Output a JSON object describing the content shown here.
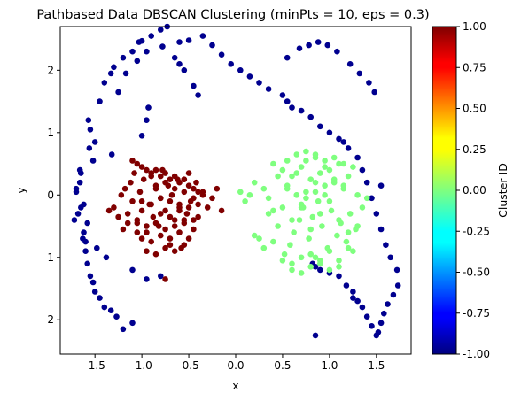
{
  "chart_data": {
    "type": "scatter",
    "title": "Pathbased Data DBSCAN Clustering (minPts = 10, eps = 0.3)",
    "xlabel": "x",
    "ylabel": "y",
    "xlim": [
      -1.87,
      1.87
    ],
    "ylim": [
      -2.55,
      2.7
    ],
    "xticks": [
      "-1.5",
      "-1.0",
      "-0.5",
      "0.0",
      "0.5",
      "1.0",
      "1.5"
    ],
    "yticks": [
      "-2",
      "-1",
      "0",
      "1",
      "2"
    ],
    "grid": false,
    "colorbar": {
      "label": "Cluster ID",
      "range": [
        -1.0,
        1.0
      ],
      "ticks": [
        "-1.00",
        "-0.75",
        "-0.50",
        "-0.25",
        "0.00",
        "0.25",
        "0.50",
        "0.75",
        "1.00"
      ],
      "colormap": "jet"
    },
    "colors": {
      "noise": "#00008f",
      "cluster_0": "#7fff7f",
      "cluster_1": "#800000"
    },
    "series": [
      {
        "cluster_id": -1,
        "x": [
          -1.72,
          -1.7,
          -1.66,
          -1.65,
          -1.62,
          -1.6,
          -1.68,
          -1.66,
          -1.65,
          -1.63,
          -1.6,
          -1.58,
          -1.55,
          -1.52,
          -1.5,
          -1.45,
          -1.4,
          -1.33,
          -1.27,
          -1.2,
          -1.1,
          -1.0,
          -0.95,
          -0.93,
          -1.56,
          -1.52,
          -1.45,
          -1.4,
          -1.33,
          -1.3,
          -1.2,
          -1.1,
          -1.03,
          -1.0,
          -0.9,
          -0.8,
          -0.73,
          -0.6,
          -0.5,
          -0.35,
          -0.25,
          -0.15,
          -0.05,
          0.05,
          0.15,
          0.25,
          0.35,
          0.5,
          0.55,
          0.6,
          0.7,
          0.8,
          0.9,
          1.0,
          1.1,
          1.15,
          1.2,
          1.3,
          1.35,
          1.4,
          1.45,
          1.5,
          1.55,
          1.6,
          1.65,
          1.72,
          1.73,
          1.68,
          1.62,
          1.58,
          1.55,
          1.52,
          1.5,
          1.45,
          1.4,
          1.35,
          1.3,
          1.25,
          1.18,
          1.1,
          1.0,
          0.9,
          0.85,
          0.82,
          -1.57,
          -1.55,
          -1.5,
          -1.32,
          -1.25,
          -1.17,
          -1.05,
          -0.95,
          -0.78,
          -0.65,
          -0.6,
          -0.55,
          -0.45,
          -0.4,
          -1.7,
          -1.62,
          -1.58,
          -1.48,
          -1.38,
          0.55,
          0.68,
          0.78,
          0.88,
          0.98,
          1.08,
          1.22,
          1.32,
          1.42,
          1.48,
          -0.95,
          -1.1,
          -0.8,
          0.85,
          1.25,
          1.55
        ],
        "y": [
          -0.4,
          0.1,
          0.4,
          -0.2,
          -0.6,
          -0.75,
          -0.3,
          0.2,
          0.35,
          -0.7,
          -0.9,
          -1.1,
          -1.3,
          -1.4,
          -1.55,
          -1.65,
          -1.8,
          -1.85,
          -1.95,
          -2.15,
          -2.05,
          0.95,
          1.2,
          1.4,
          0.75,
          0.55,
          1.5,
          1.8,
          1.95,
          2.05,
          2.2,
          2.3,
          2.45,
          2.47,
          2.55,
          2.65,
          2.7,
          2.45,
          2.48,
          2.55,
          2.4,
          2.25,
          2.1,
          2.0,
          1.9,
          1.8,
          1.7,
          1.6,
          1.5,
          1.4,
          1.35,
          1.25,
          1.1,
          1.0,
          0.9,
          0.85,
          0.75,
          0.6,
          0.4,
          0.2,
          -0.05,
          -0.3,
          -0.55,
          -0.8,
          -1.0,
          -1.2,
          -1.45,
          -1.6,
          -1.75,
          -1.9,
          -2.05,
          -2.2,
          -2.25,
          -2.1,
          -1.95,
          -1.8,
          -1.7,
          -1.55,
          -1.45,
          -1.3,
          -1.25,
          -1.2,
          -1.15,
          -1.1,
          1.2,
          1.05,
          0.85,
          0.65,
          1.65,
          1.95,
          2.15,
          2.3,
          2.38,
          2.2,
          2.1,
          2.0,
          1.75,
          1.6,
          0.05,
          -0.15,
          -0.45,
          -0.85,
          -1.0,
          2.2,
          2.35,
          2.4,
          2.45,
          2.4,
          2.3,
          2.1,
          1.95,
          1.8,
          1.65,
          -1.35,
          -1.2,
          -1.3,
          -2.25,
          -1.65,
          0.15
        ],
        "color": "#00008f"
      },
      {
        "cluster_id": 0,
        "x": [
          0.05,
          0.1,
          0.2,
          0.25,
          0.3,
          0.35,
          0.4,
          0.45,
          0.5,
          0.52,
          0.55,
          0.58,
          0.6,
          0.62,
          0.65,
          0.68,
          0.7,
          0.72,
          0.75,
          0.78,
          0.8,
          0.82,
          0.85,
          0.88,
          0.9,
          0.92,
          0.95,
          0.98,
          1.0,
          1.02,
          1.05,
          1.08,
          1.1,
          1.12,
          1.15,
          1.18,
          1.2,
          1.22,
          1.25,
          1.28,
          1.3,
          1.35,
          1.4,
          0.45,
          0.5,
          0.55,
          0.6,
          0.65,
          0.7,
          0.75,
          0.8,
          0.85,
          0.9,
          0.95,
          1.0,
          1.05,
          1.1,
          1.15,
          1.2,
          0.35,
          0.4,
          0.5,
          0.6,
          0.7,
          0.8,
          0.9,
          1.0,
          1.1,
          1.2,
          1.3,
          0.55,
          0.65,
          0.75,
          0.85,
          0.95,
          1.05,
          1.15,
          0.6,
          0.7,
          0.8,
          0.9,
          1.0,
          1.1,
          0.65,
          0.75,
          0.85,
          0.95,
          0.2,
          0.15,
          0.3,
          0.4,
          0.85,
          0.7,
          1.25
        ],
        "y": [
          0.05,
          -0.1,
          0.2,
          -0.7,
          0.1,
          -0.3,
          0.5,
          -0.5,
          0.4,
          -0.95,
          0.15,
          -0.8,
          0.3,
          -0.6,
          0.0,
          -0.4,
          0.45,
          -0.2,
          0.55,
          -0.7,
          0.25,
          -0.35,
          0.6,
          -0.1,
          0.35,
          -0.5,
          0.15,
          -0.85,
          0.4,
          -0.25,
          0.2,
          -0.65,
          0.5,
          -0.45,
          0.1,
          -0.75,
          0.3,
          -0.3,
          0.45,
          -0.55,
          0.0,
          -0.2,
          -0.05,
          0.3,
          -0.2,
          0.1,
          -0.4,
          0.35,
          -0.15,
          0.05,
          -0.55,
          0.2,
          -0.3,
          0.45,
          -0.1,
          0.25,
          -0.4,
          0.15,
          -0.6,
          -0.05,
          -0.25,
          -1.05,
          -1.1,
          -1.0,
          -0.95,
          -1.05,
          -0.9,
          -1.15,
          -0.85,
          -0.5,
          0.55,
          0.65,
          0.7,
          0.65,
          0.55,
          0.6,
          0.5,
          -1.2,
          -1.25,
          -1.15,
          -1.1,
          -1.2,
          -1.05,
          0.0,
          -0.05,
          0.05,
          0.0,
          -0.65,
          0.0,
          -0.85,
          -0.75,
          -1.0,
          -0.2,
          -0.9
        ],
        "color": "#7fff7f"
      },
      {
        "cluster_id": 1,
        "x": [
          -1.35,
          -1.3,
          -1.25,
          -1.22,
          -1.2,
          -1.18,
          -1.15,
          -1.12,
          -1.1,
          -1.08,
          -1.05,
          -1.02,
          -1.0,
          -0.98,
          -0.95,
          -0.92,
          -0.9,
          -0.88,
          -0.85,
          -0.82,
          -0.8,
          -0.78,
          -0.75,
          -0.72,
          -0.7,
          -0.68,
          -0.65,
          -0.62,
          -0.6,
          -0.58,
          -0.55,
          -0.52,
          -0.5,
          -0.48,
          -0.45,
          -0.42,
          -0.4,
          -0.35,
          -0.3,
          -0.25,
          -0.2,
          -0.15,
          -1.1,
          -1.05,
          -1.0,
          -0.95,
          -0.9,
          -0.85,
          -0.8,
          -0.75,
          -0.7,
          -0.65,
          -0.6,
          -0.55,
          -0.5,
          -0.45,
          -1.0,
          -0.9,
          -0.8,
          -0.7,
          -0.6,
          -0.5,
          -1.15,
          -1.05,
          -0.95,
          -0.85,
          -0.75,
          -0.65,
          -0.55,
          -0.45,
          -0.95,
          -0.85,
          -0.75,
          -0.65,
          -0.55,
          -1.0,
          -0.9,
          -0.8,
          -0.7,
          -0.6,
          -0.85,
          -0.75,
          -0.65,
          -0.55,
          -0.5,
          -0.4,
          -0.8,
          -0.7,
          -0.6,
          -0.55,
          -0.45,
          -0.35,
          -0.4,
          -1.05,
          -0.75
        ],
        "y": [
          -0.25,
          -0.2,
          -0.35,
          0.0,
          -0.55,
          0.1,
          -0.3,
          0.2,
          -0.1,
          0.35,
          -0.45,
          0.05,
          -0.25,
          0.25,
          -0.6,
          -0.15,
          0.3,
          -0.35,
          0.1,
          -0.5,
          -0.05,
          0.4,
          -0.25,
          0.15,
          -0.7,
          0.0,
          -0.4,
          0.25,
          -0.15,
          -0.85,
          0.05,
          -0.3,
          0.35,
          -0.1,
          -0.55,
          0.2,
          -0.35,
          0.05,
          -0.2,
          -0.05,
          0.1,
          -0.25,
          0.55,
          0.5,
          0.45,
          0.4,
          0.35,
          0.4,
          0.3,
          0.35,
          0.25,
          0.3,
          0.2,
          0.25,
          0.15,
          0.1,
          -0.7,
          -0.75,
          -0.65,
          -0.8,
          -0.6,
          -0.7,
          -0.45,
          -0.4,
          -0.5,
          -0.45,
          -0.55,
          -0.5,
          -0.45,
          -0.4,
          -0.9,
          -0.95,
          -0.85,
          -0.9,
          -0.8,
          -0.1,
          -0.15,
          -0.05,
          -0.1,
          -0.2,
          0.15,
          0.2,
          0.1,
          0.25,
          -0.2,
          -0.15,
          -0.3,
          -0.35,
          -0.25,
          -0.4,
          -0.05,
          0.0,
          0.05,
          -0.6,
          -1.35
        ],
        "color": "#800000"
      }
    ]
  }
}
